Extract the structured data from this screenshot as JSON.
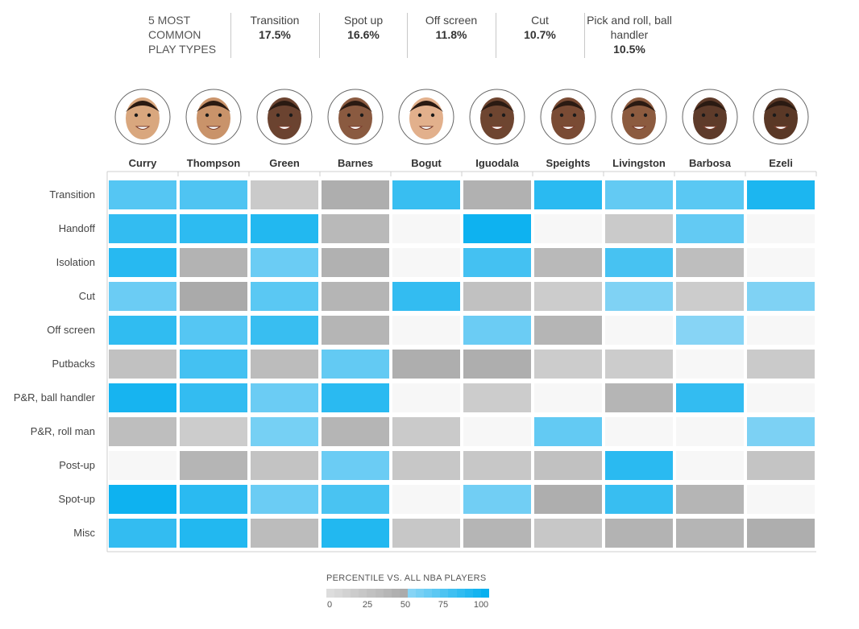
{
  "summary": {
    "title": "5 MOST COMMON PLAY TYPES",
    "items": [
      {
        "label": "Transition",
        "pct": "17.5%"
      },
      {
        "label": "Spot up",
        "pct": "16.6%"
      },
      {
        "label": "Off screen",
        "pct": "11.8%"
      },
      {
        "label": "Cut",
        "pct": "10.7%"
      },
      {
        "label": "Pick and roll, ball handler",
        "pct": "10.5%"
      }
    ]
  },
  "chart_data": {
    "type": "heatmap",
    "title": "",
    "players": [
      "Curry",
      "Thompson",
      "Green",
      "Barnes",
      "Bogut",
      "Iguodala",
      "Speights",
      "Livingston",
      "Barbosa",
      "Ezeli"
    ],
    "play_types": [
      "Transition",
      "Handoff",
      "Isolation",
      "Cut",
      "Off screen",
      "Putbacks",
      "P&R, ball handler",
      "P&R, roll man",
      "Post-up",
      "Spot-up",
      "Misc"
    ],
    "values": [
      [
        70,
        72,
        20,
        45,
        80,
        42,
        85,
        65,
        68,
        90
      ],
      [
        82,
        84,
        88,
        35,
        null,
        95,
        null,
        20,
        65,
        null
      ],
      [
        86,
        40,
        62,
        42,
        null,
        76,
        35,
        75,
        30,
        null
      ],
      [
        62,
        48,
        68,
        38,
        82,
        28,
        18,
        55,
        18,
        55
      ],
      [
        83,
        70,
        80,
        38,
        null,
        62,
        38,
        null,
        52,
        null
      ],
      [
        28,
        76,
        32,
        65,
        45,
        45,
        18,
        18,
        null,
        20
      ],
      [
        92,
        82,
        62,
        85,
        null,
        18,
        null,
        38,
        82,
        null
      ],
      [
        30,
        18,
        58,
        38,
        20,
        null,
        65,
        null,
        null,
        56
      ],
      [
        null,
        38,
        26,
        62,
        22,
        22,
        28,
        85,
        null,
        25
      ],
      [
        95,
        85,
        62,
        74,
        null,
        60,
        45,
        80,
        38,
        null
      ],
      [
        82,
        88,
        32,
        88,
        22,
        38,
        22,
        40,
        38,
        45
      ]
    ],
    "value_note": "percentile vs. all NBA players (null = no data)",
    "legend": {
      "title": "PERCENTILE VS. ALL NBA PLAYERS",
      "ticks": [
        "0",
        "25",
        "50",
        "75",
        "100"
      ],
      "range": [
        0,
        100
      ]
    },
    "colors": {
      "no_data": "#f7f7f7",
      "gray_low": "#e0e0e0",
      "gray_mid": "#a8a8a8",
      "blue_low": "#8dd6f5",
      "blue_high": "#00aeef"
    }
  }
}
